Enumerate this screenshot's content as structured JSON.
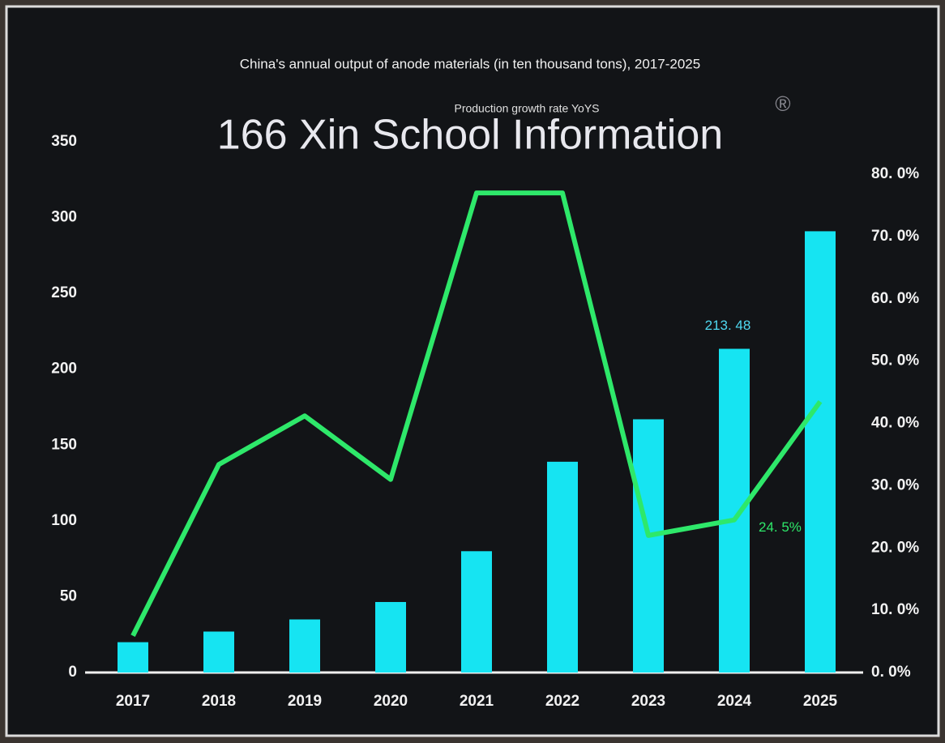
{
  "chart_data": {
    "type": "bar_line",
    "title": "China's annual output of anode materials (in ten thousand tons), 2017-2025",
    "watermark": "166 Xin School Information",
    "watermark_mark": "®",
    "categories": [
      "2017",
      "2018",
      "2019",
      "2020",
      "2021",
      "2022",
      "2023",
      "2024",
      "2025"
    ],
    "series": [
      {
        "color": "#16e4f2",
        "values": [
          20,
          27,
          35,
          46.5,
          80,
          139,
          167,
          213.48,
          291
        ],
        "value_labels": [
          null,
          null,
          null,
          null,
          null,
          null,
          null,
          "213. 48",
          null
        ]
      },
      {
        "name": "Production growth rate YoYS",
        "color": "#2ee86a",
        "axis": "y2",
        "values": [
          5.9,
          33.4,
          41.2,
          31,
          77,
          77,
          22,
          24.5,
          43.5
        ],
        "value_labels": [
          null,
          null,
          null,
          null,
          null,
          null,
          null,
          "24. 5%",
          null
        ]
      }
    ],
    "ylim": [
      0,
      350
    ],
    "yticks": [
      0,
      50,
      100,
      150,
      200,
      250,
      300,
      350
    ],
    "y2lim": [
      0,
      80
    ],
    "y2ticks": [
      {
        "value": 0,
        "label": "0. 0%"
      },
      {
        "value": 10,
        "label": "10. 0%"
      },
      {
        "value": 20,
        "label": "20. 0%"
      },
      {
        "value": 30,
        "label": "30. 0%"
      },
      {
        "value": 40,
        "label": "40. 0%"
      },
      {
        "value": 50,
        "label": "50. 0%"
      },
      {
        "value": 60,
        "label": "60. 0%"
      },
      {
        "value": 70,
        "label": "70. 0%"
      },
      {
        "value": 80,
        "label": "80. 0%"
      }
    ]
  }
}
